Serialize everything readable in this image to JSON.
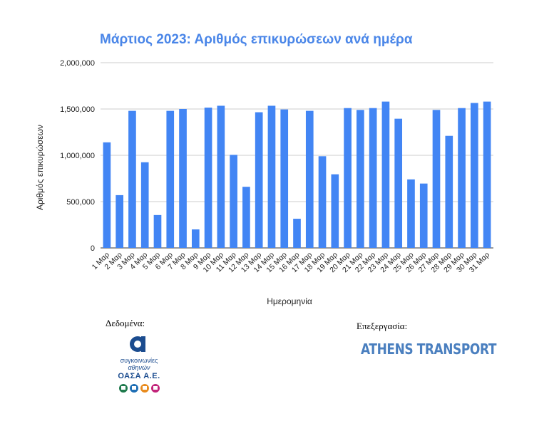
{
  "chart_data": {
    "type": "bar",
    "title": "Μάρτιος 2023: Αριθμός επικυρώσεων ανά ημέρα",
    "xlabel": "Ημερομηνία",
    "ylabel": "Αριθμός επικυρώσεων",
    "ylim": [
      0,
      2000000
    ],
    "yticks": [
      "0",
      "500,000",
      "1,000,000",
      "1,500,000",
      "2,000,000"
    ],
    "grid": true,
    "bar_color": "#4285f4",
    "categories": [
      "1 Μαρ",
      "2 Μαρ",
      "3 Μαρ",
      "4 Μαρ",
      "5 Μαρ",
      "6 Μαρ",
      "7 Μαρ",
      "8 Μαρ",
      "9 Μαρ",
      "10 Μαρ",
      "11 Μαρ",
      "12 Μαρ",
      "13 Μαρ",
      "14 Μαρ",
      "15 Μαρ",
      "16 Μαρ",
      "17 Μαρ",
      "18 Μαρ",
      "19 Μαρ",
      "20 Μαρ",
      "21 Μαρ",
      "22 Μαρ",
      "23 Μαρ",
      "24 Μαρ",
      "25 Μαρ",
      "26 Μαρ",
      "27 Μαρ",
      "28 Μαρ",
      "29 Μαρ",
      "30 Μαρ",
      "31 Μαρ"
    ],
    "values": [
      1140000,
      570000,
      1480000,
      925000,
      355000,
      1480000,
      1500000,
      200000,
      1515000,
      1535000,
      1005000,
      660000,
      1465000,
      1535000,
      1495000,
      315000,
      1480000,
      990000,
      795000,
      1510000,
      1490000,
      1510000,
      1580000,
      1395000,
      740000,
      695000,
      1490000,
      1210000,
      1510000,
      1565000,
      1580000
    ]
  },
  "footer": {
    "data_label": "Δεδομένα:",
    "processing_label": "Επεξεργασία:",
    "oasa_line1": "συγκοινωνίες",
    "oasa_line2": "αθηνών",
    "oasa_line3": "ΟΑΣΑ Α.Ε.",
    "athens_logo": "ATHENS TRANSPORT"
  },
  "colors": {
    "title": "#4a86e8",
    "bar": "#4285f4",
    "grid": "#cccccc",
    "oasa_blue": "#1b4c8f",
    "athens_blue": "#4a7fbf"
  },
  "icons": [
    "oasa-alpha-logo-icon",
    "bus-icon",
    "trolley-icon",
    "metro-icon",
    "tram-icon"
  ]
}
